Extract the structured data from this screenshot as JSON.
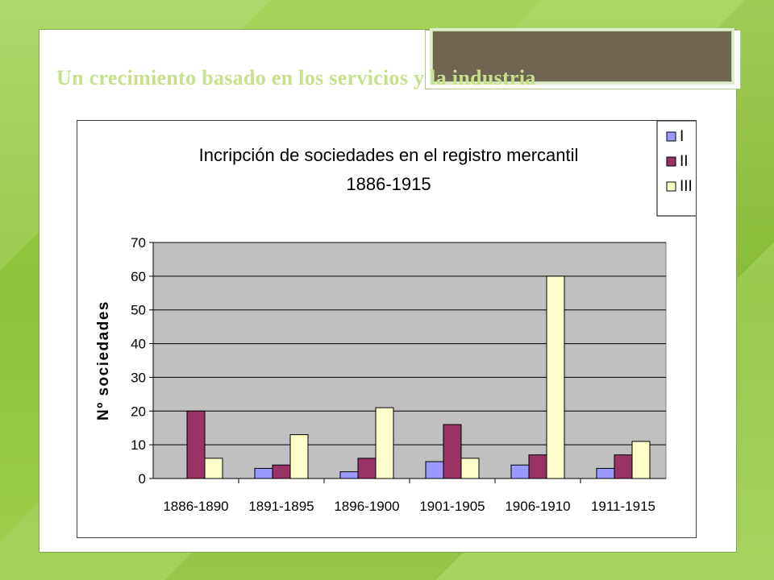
{
  "slide": {
    "title": "Un crecimiento basado en los servicios y la industria"
  },
  "chart_data": {
    "type": "bar",
    "title_line1": "Incripción de sociedades en el registro mercantil",
    "title_line2": "1886-1915",
    "xlabel": "",
    "ylabel": "Nº sociedades",
    "ylim": [
      0,
      70
    ],
    "yticks": [
      0,
      10,
      20,
      30,
      40,
      50,
      60,
      70
    ],
    "grid": true,
    "legend_position": "top-right",
    "categories": [
      "1886-1890",
      "1891-1895",
      "1896-1900",
      "1901-1905",
      "1906-1910",
      "1911-1915"
    ],
    "series": [
      {
        "name": "I",
        "color": "#9999ff",
        "values": [
          0,
          3,
          2,
          5,
          4,
          3
        ]
      },
      {
        "name": "II",
        "color": "#993366",
        "values": [
          20,
          4,
          6,
          16,
          7,
          7
        ]
      },
      {
        "name": "III",
        "color": "#ffffcc",
        "values": [
          6,
          13,
          21,
          6,
          60,
          11
        ]
      }
    ],
    "plot_background": "#c0c0c0"
  }
}
